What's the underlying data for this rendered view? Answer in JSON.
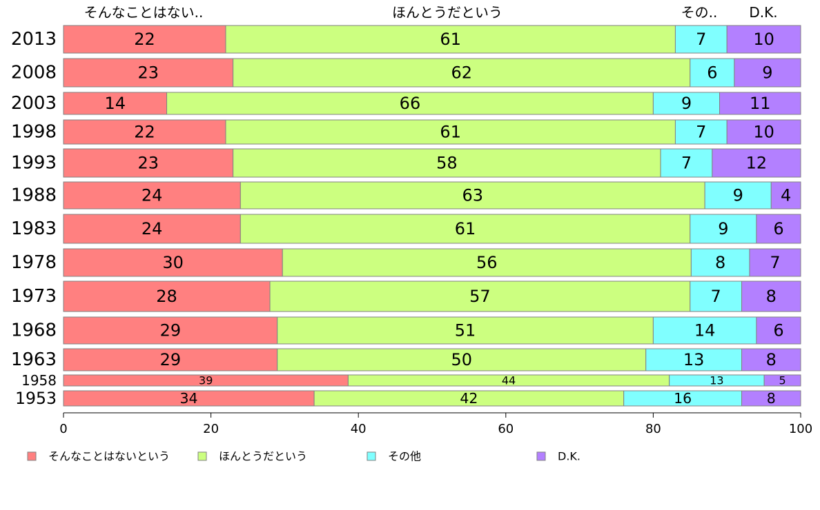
{
  "chart_data": {
    "type": "bar",
    "orientation": "horizontal",
    "stacked": true,
    "normalized": true,
    "categories": [
      "2013",
      "2008",
      "2003",
      "1998",
      "1993",
      "1988",
      "1983",
      "1978",
      "1973",
      "1968",
      "1963",
      "1958",
      "1953"
    ],
    "series": [
      {
        "name": "そんなことはないという",
        "values": [
          22,
          23,
          14,
          22,
          23,
          24,
          24,
          30,
          28,
          29,
          29,
          39,
          34
        ],
        "color": "#ff8080"
      },
      {
        "name": "ほんとうだという",
        "values": [
          61,
          62,
          66,
          61,
          58,
          63,
          61,
          56,
          57,
          51,
          50,
          44,
          42
        ],
        "color": "#ccff80"
      },
      {
        "name": "その他",
        "values": [
          7,
          6,
          9,
          7,
          7,
          9,
          9,
          8,
          7,
          14,
          13,
          13,
          16
        ],
        "color": "#80ffff"
      },
      {
        "name": "D.K.",
        "values": [
          10,
          9,
          11,
          10,
          12,
          4,
          6,
          7,
          8,
          6,
          8,
          5,
          8
        ],
        "color": "#b380ff"
      }
    ],
    "top_labels": [
      "そんなことはない..",
      "ほんとうだという",
      "その..",
      "D.K."
    ],
    "xlim": [
      0,
      100
    ],
    "xticks": [
      0,
      20,
      40,
      60,
      80,
      100
    ],
    "grid": false,
    "legend_position": "bottom"
  }
}
